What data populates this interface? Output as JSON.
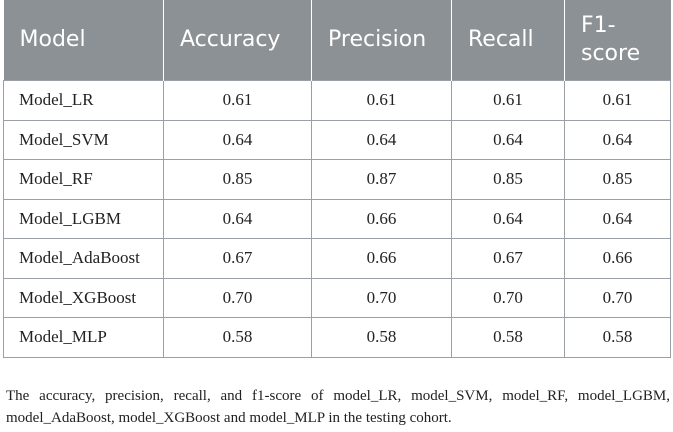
{
  "table": {
    "headers": [
      "Model",
      "Accuracy",
      "Precision",
      "Recall",
      "F1-score"
    ],
    "rows": [
      [
        "Model_LR",
        "0.61",
        "0.61",
        "0.61",
        "0.61"
      ],
      [
        "Model_SVM",
        "0.64",
        "0.64",
        "0.64",
        "0.64"
      ],
      [
        "Model_RF",
        "0.85",
        "0.87",
        "0.85",
        "0.85"
      ],
      [
        "Model_LGBM",
        "0.64",
        "0.66",
        "0.64",
        "0.64"
      ],
      [
        "Model_AdaBoost",
        "0.67",
        "0.66",
        "0.67",
        "0.66"
      ],
      [
        "Model_XGBoost",
        "0.70",
        "0.70",
        "0.70",
        "0.70"
      ],
      [
        "Model_MLP",
        "0.58",
        "0.58",
        "0.58",
        "0.58"
      ]
    ]
  },
  "caption": "The accuracy, precision, recall, and f1-score of model_LR, model_SVM, model_RF, model_LGBM, model_AdaBoost, model_XGBoost and model_MLP in the testing cohort.",
  "colors": {
    "header_bg": "#8c9196",
    "header_text": "#ffffff",
    "border": "#9aa0a6"
  }
}
